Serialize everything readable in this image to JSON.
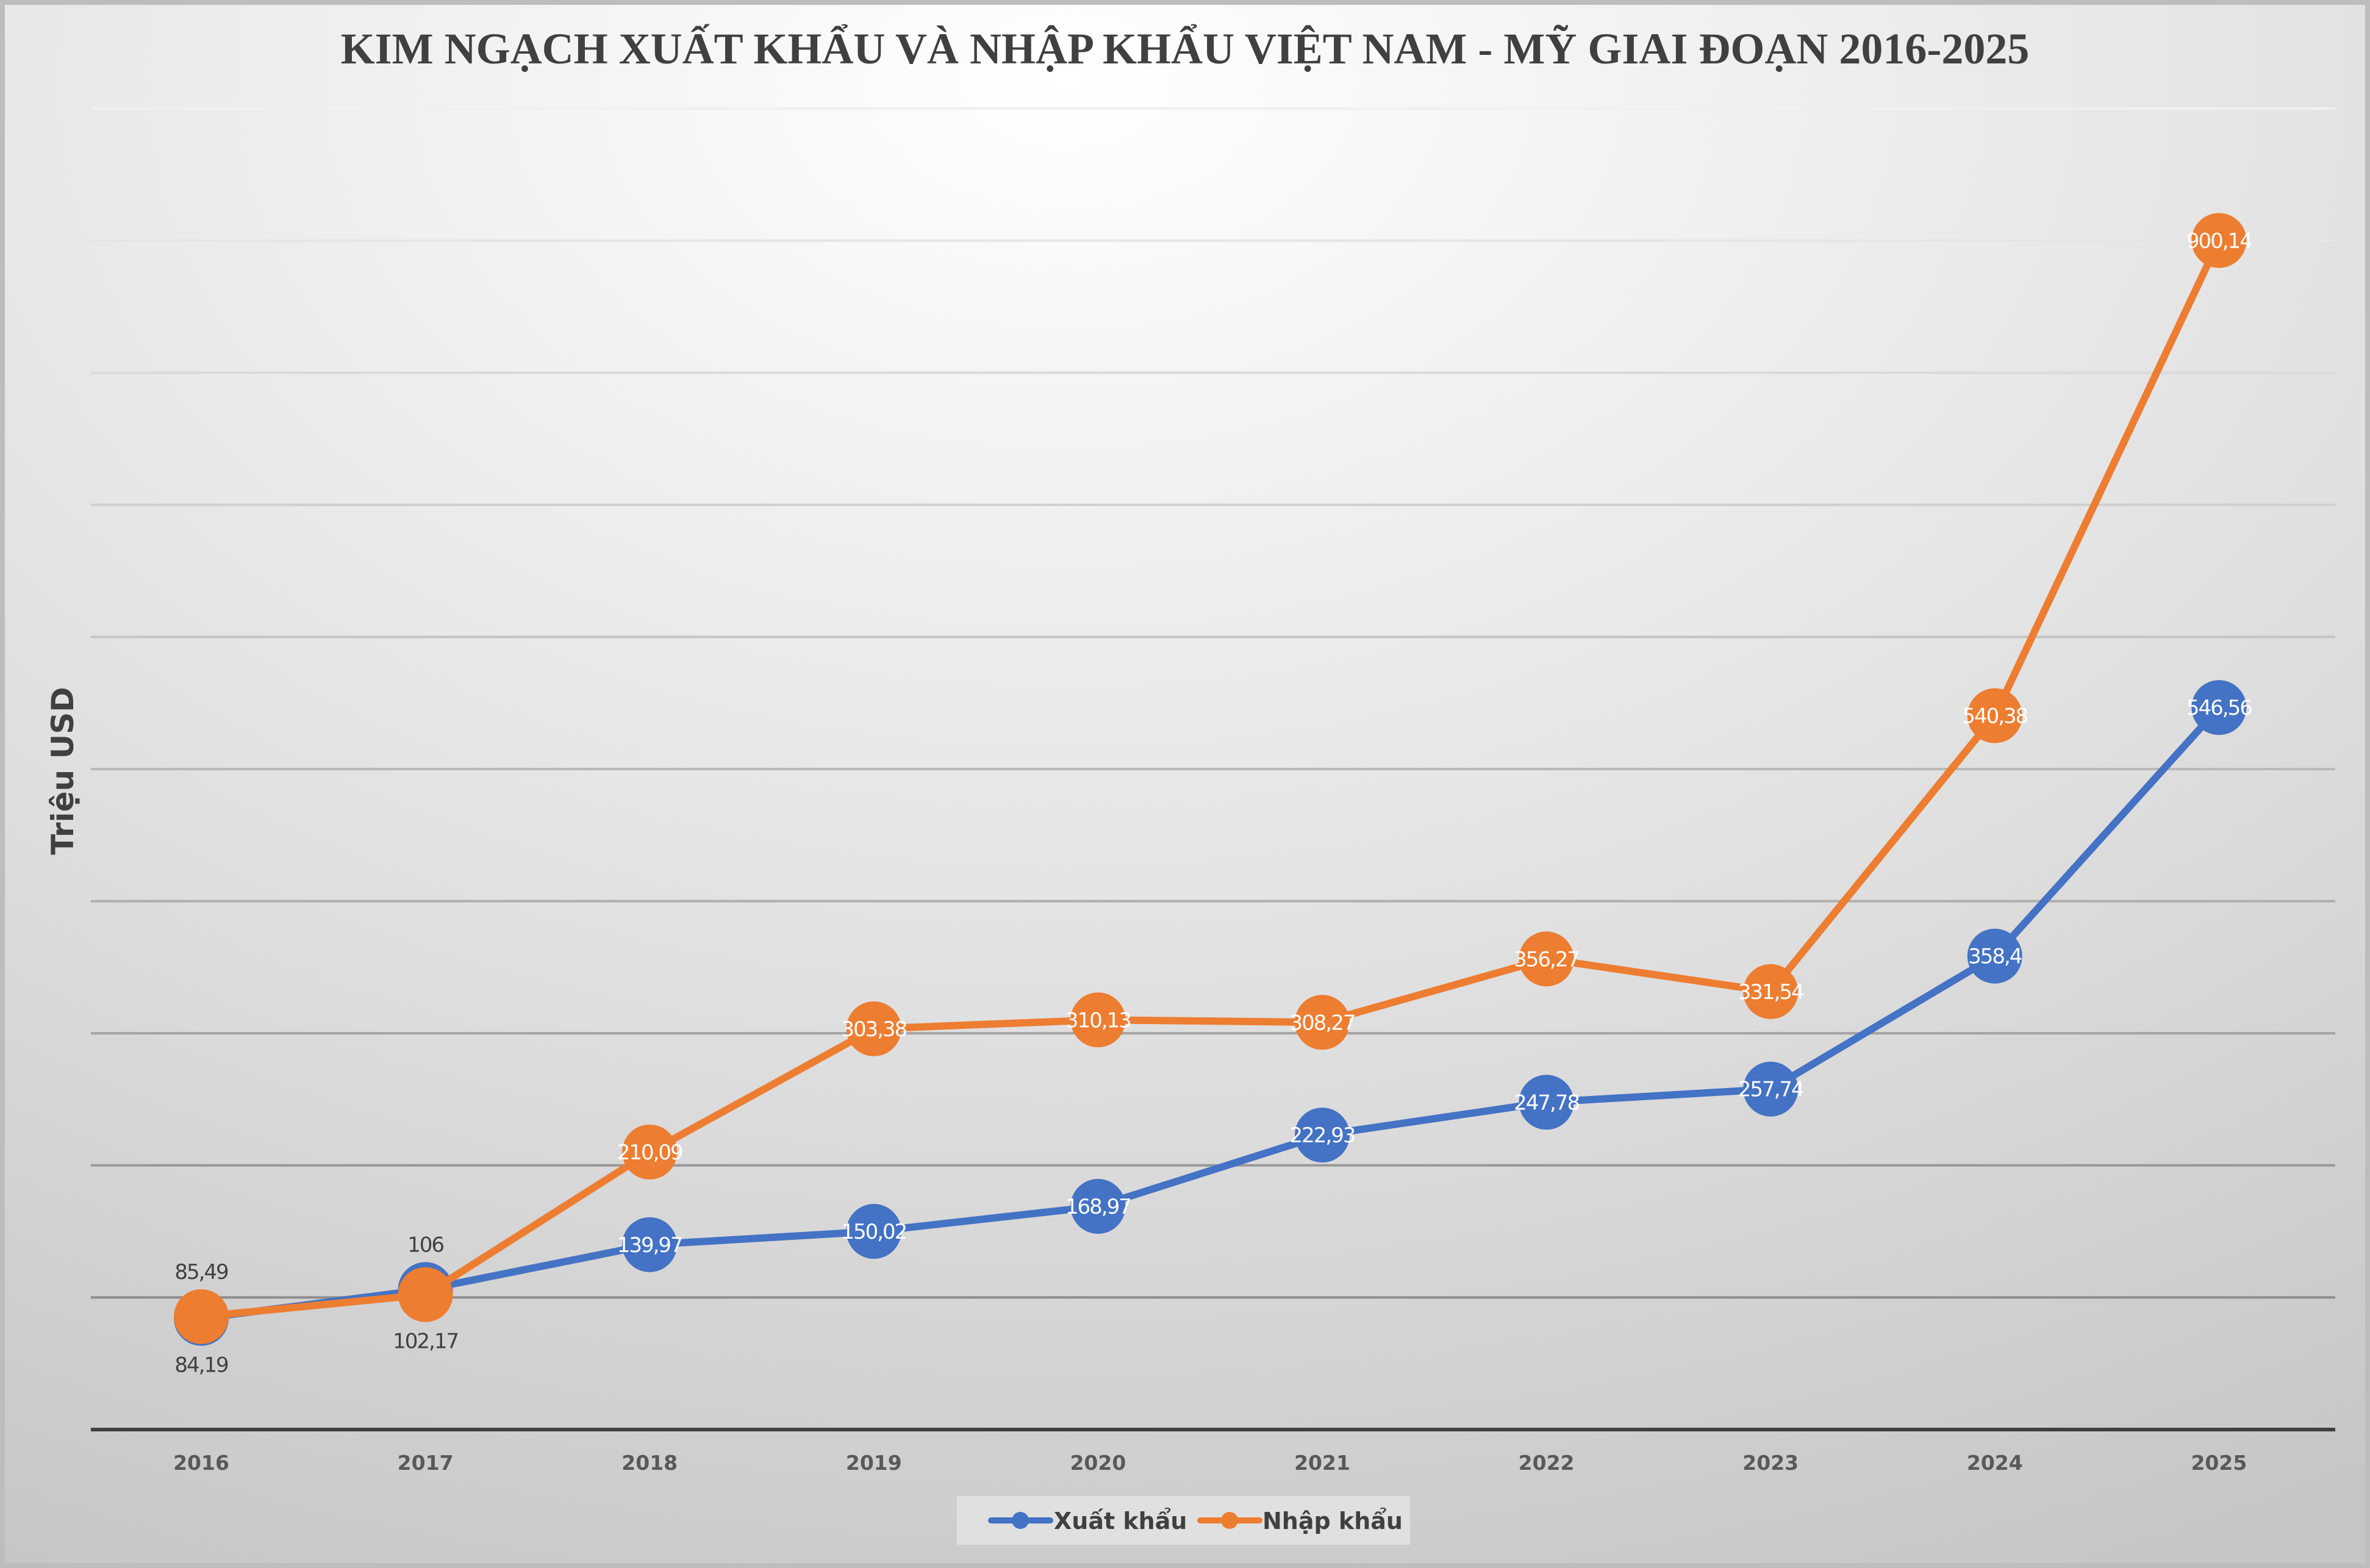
{
  "chart_data": {
    "type": "line",
    "title": "KIM NGẠCH XUẤT KHẨU VÀ NHẬP KHẨU VIỆT NAM - MỸ GIAI ĐOẠN 2016-2025",
    "xlabel": "",
    "ylabel": "Triệu USD",
    "categories": [
      "2016",
      "2017",
      "2018",
      "2019",
      "2020",
      "2021",
      "2022",
      "2023",
      "2024",
      "2025"
    ],
    "ylim": [
      0,
      1000
    ],
    "y_gridline_step": 100,
    "y_tick_labels_shown": false,
    "grid": true,
    "legend_position": "bottom",
    "series": [
      {
        "name": "Xuất khẩu",
        "color": "#4472C4",
        "values": [
          84.19,
          106,
          139.97,
          150.02,
          168.97,
          222.93,
          247.78,
          257.74,
          358.4,
          546.56
        ],
        "labels": [
          "84,19",
          "106",
          "139,97",
          "150,02",
          "168,97",
          "222,93",
          "247,78",
          "257,74",
          "358,4",
          "546,56"
        ]
      },
      {
        "name": "Nhập khẩu",
        "color": "#ED7D31",
        "values": [
          85.49,
          102.17,
          210.09,
          303.38,
          310.13,
          308.27,
          356.27,
          331.54,
          540.38,
          900.14
        ],
        "labels": [
          "85,49",
          "102,17",
          "210,09",
          "303,38",
          "310,13",
          "308,27",
          "356,27",
          "331,54",
          "540,38",
          "900,14"
        ]
      }
    ]
  }
}
